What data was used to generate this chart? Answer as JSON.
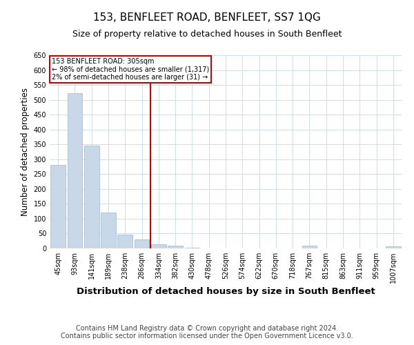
{
  "title": "153, BENFLEET ROAD, BENFLEET, SS7 1QG",
  "subtitle": "Size of property relative to detached houses in South Benfleet",
  "xlabel": "Distribution of detached houses by size in South Benfleet",
  "ylabel": "Number of detached properties",
  "categories": [
    "45sqm",
    "93sqm",
    "141sqm",
    "189sqm",
    "238sqm",
    "286sqm",
    "334sqm",
    "382sqm",
    "430sqm",
    "478sqm",
    "526sqm",
    "574sqm",
    "622sqm",
    "670sqm",
    "718sqm",
    "767sqm",
    "815sqm",
    "863sqm",
    "911sqm",
    "959sqm",
    "1007sqm"
  ],
  "values": [
    280,
    523,
    345,
    120,
    47,
    30,
    13,
    10,
    3,
    0,
    0,
    0,
    0,
    0,
    0,
    10,
    0,
    0,
    0,
    0,
    8
  ],
  "bar_color": "#c8d8e8",
  "bar_edge_color": "#a0b8cc",
  "vline_x_index": 5.5,
  "vline_color": "#cc0000",
  "annotation_line1": "153 BENFLEET ROAD: 305sqm",
  "annotation_line2": "← 98% of detached houses are smaller (1,317)",
  "annotation_line3": "2% of semi-detached houses are larger (31) →",
  "annotation_box_color": "#cc0000",
  "ylim": [
    0,
    650
  ],
  "yticks": [
    0,
    50,
    100,
    150,
    200,
    250,
    300,
    350,
    400,
    450,
    500,
    550,
    600,
    650
  ],
  "footer_line1": "Contains HM Land Registry data © Crown copyright and database right 2024.",
  "footer_line2": "Contains public sector information licensed under the Open Government Licence v3.0.",
  "bg_color": "#ffffff",
  "grid_color": "#ccdde8",
  "title_fontsize": 11,
  "subtitle_fontsize": 9,
  "xlabel_fontsize": 9.5,
  "ylabel_fontsize": 8.5,
  "tick_fontsize": 7,
  "footer_fontsize": 7
}
